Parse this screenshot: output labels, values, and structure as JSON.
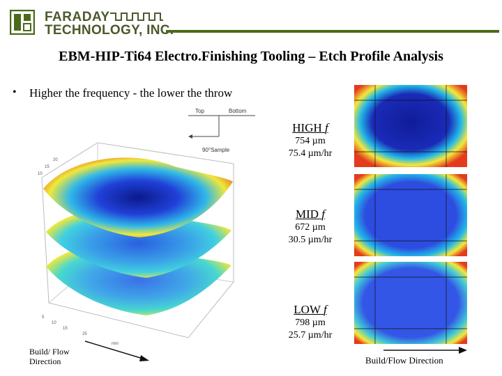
{
  "header": {
    "company_line1": "FARADAY",
    "company_line2": "TECHNOLOGY, INC.",
    "brand_color": "#4a6a1a"
  },
  "title": "EBM-HIP-Ti64 Electro.Finishing Tooling – Etch Profile Analysis",
  "bullet": "Higher the frequency - the lower the throw",
  "orientation": {
    "top_label": "Top",
    "bottom_label": "Bottom",
    "sample_label": "90°Sample"
  },
  "samples": [
    {
      "label": "HIGH",
      "symbol": "f",
      "depth": "754 µm",
      "rate": "75.4 µm/hr"
    },
    {
      "label": "MID",
      "symbol": "f",
      "depth": "672 µm",
      "rate": "30.5 µm/hr"
    },
    {
      "label": "LOW",
      "symbol": "f",
      "depth": "798 µm",
      "rate": "25.7 µm/hr"
    }
  ],
  "build_left": {
    "line1": "Build/ Flow",
    "line2": "Direction"
  },
  "build_right": "Build/Flow Direction",
  "colors": {
    "deep_blue": "#1a2bb8",
    "mid_blue": "#2d4ce0",
    "cyan": "#22b8e8",
    "yellow": "#f3e83a",
    "red": "#e33b1e"
  },
  "icons": [
    "logo-icon",
    "pulse-wave-icon",
    "arrow-icon"
  ]
}
